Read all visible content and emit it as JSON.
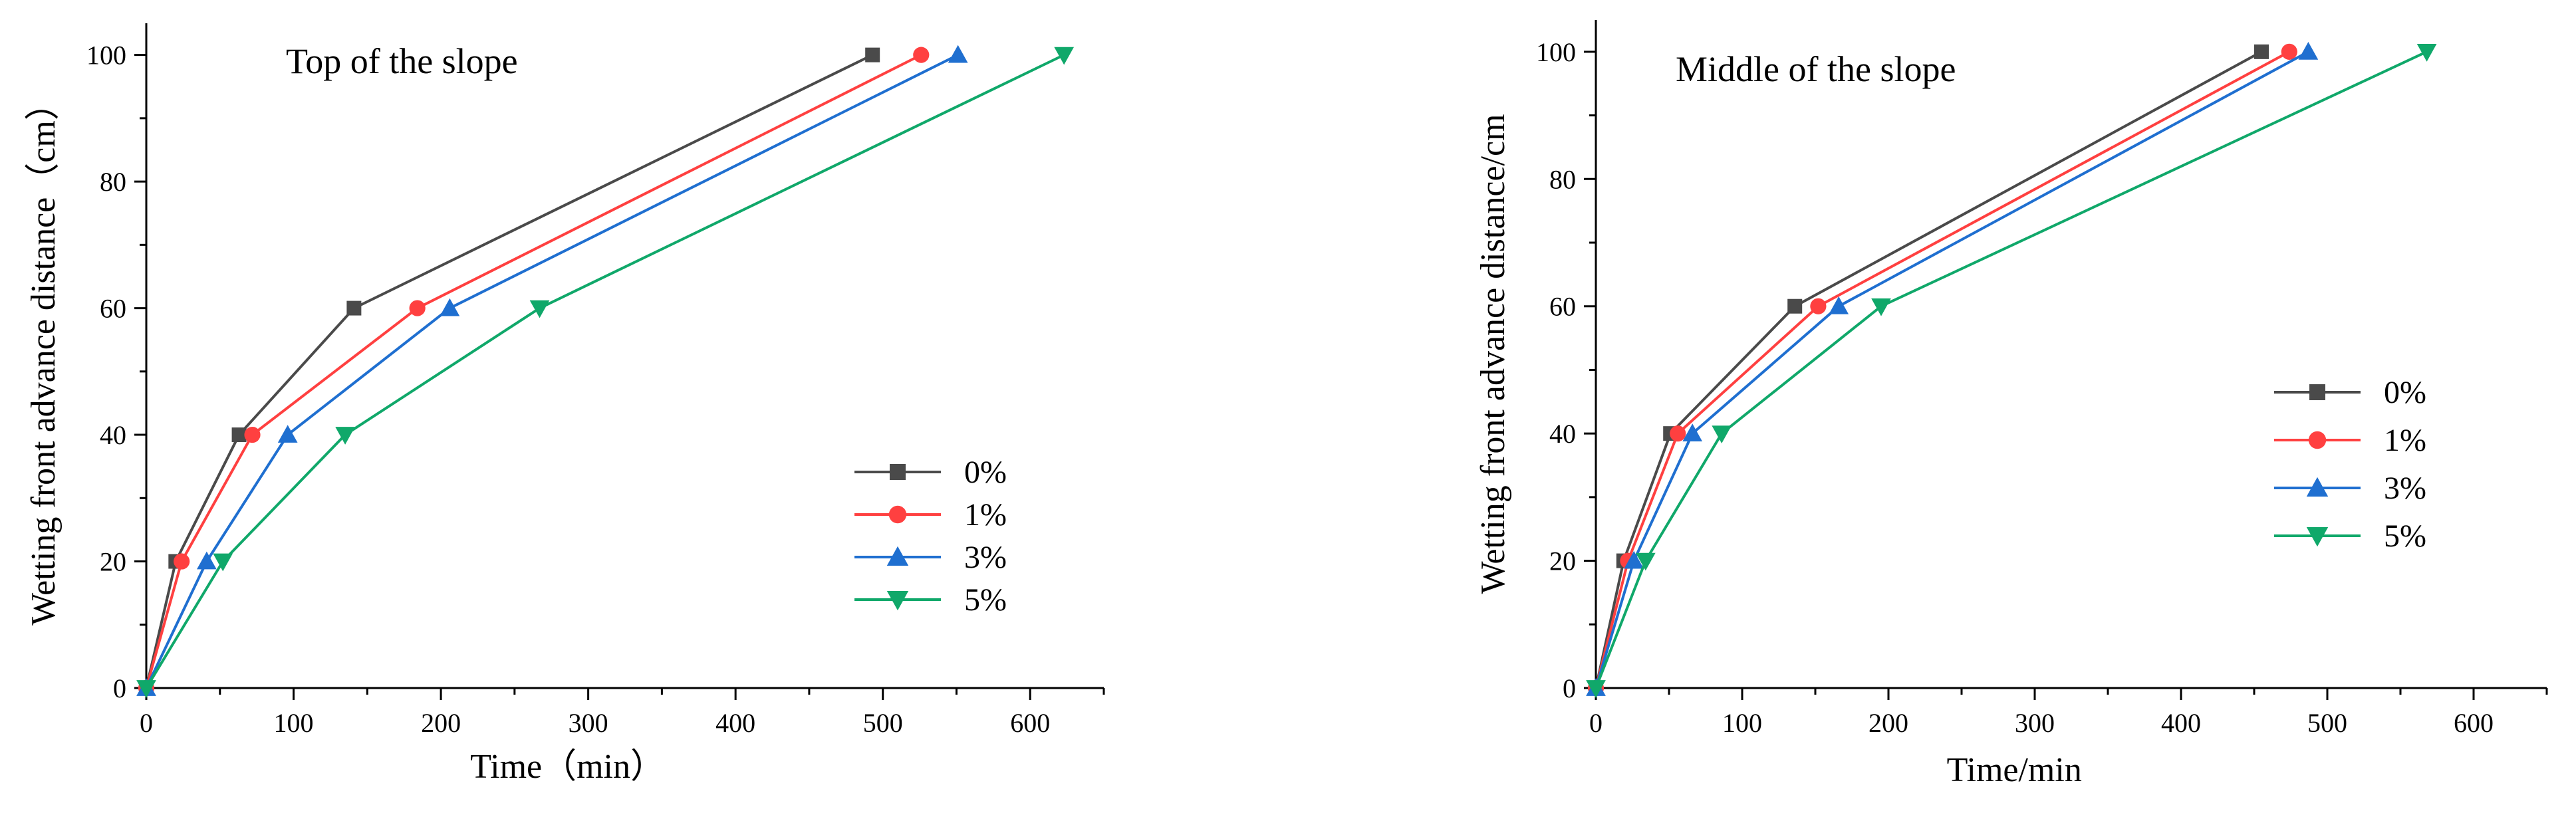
{
  "chart_data": [
    {
      "type": "line",
      "title": "Top of the slope",
      "xlabel": "Time（min）",
      "ylabel": "Wetting front advance distance（cm）",
      "xlim": [
        0,
        650
      ],
      "ylim": [
        0,
        105
      ],
      "xticks": [
        0,
        100,
        200,
        300,
        400,
        500,
        600
      ],
      "yticks": [
        0,
        20,
        40,
        60,
        80,
        100
      ],
      "legend_position": "right-middle",
      "series": [
        {
          "name": "0%",
          "color": "#4a4a4a",
          "marker": "square",
          "x": [
            0,
            20,
            63,
            141,
            493
          ],
          "y": [
            0,
            20,
            40,
            60,
            100
          ]
        },
        {
          "name": "1%",
          "color": "#ff4040",
          "marker": "circle",
          "x": [
            0,
            24,
            72,
            184,
            526
          ],
          "y": [
            0,
            20,
            40,
            60,
            100
          ]
        },
        {
          "name": "3%",
          "color": "#1f6fd0",
          "marker": "triangle-up",
          "x": [
            0,
            41,
            96,
            206,
            551
          ],
          "y": [
            0,
            20,
            40,
            60,
            100
          ]
        },
        {
          "name": "5%",
          "color": "#10a86a",
          "marker": "triangle-down",
          "x": [
            0,
            52,
            135,
            267,
            623
          ],
          "y": [
            0,
            20,
            40,
            60,
            100
          ]
        }
      ]
    },
    {
      "type": "line",
      "title": "Middle of the slope",
      "xlabel": "Time/min",
      "ylabel": "Wetting front advance distance/cm",
      "xlim": [
        0,
        650
      ],
      "ylim": [
        0,
        105
      ],
      "xticks": [
        0,
        100,
        200,
        300,
        400,
        500,
        600
      ],
      "yticks": [
        0,
        20,
        40,
        60,
        80,
        100
      ],
      "legend_position": "right-middle",
      "series": [
        {
          "name": "0%",
          "color": "#4a4a4a",
          "marker": "square",
          "x": [
            0,
            19,
            51,
            136,
            455
          ],
          "y": [
            0,
            20,
            40,
            60,
            100
          ]
        },
        {
          "name": "1%",
          "color": "#ff4040",
          "marker": "circle",
          "x": [
            0,
            22,
            56,
            152,
            474
          ],
          "y": [
            0,
            20,
            40,
            60,
            100
          ]
        },
        {
          "name": "3%",
          "color": "#1f6fd0",
          "marker": "triangle-up",
          "x": [
            0,
            26,
            66,
            166,
            487
          ],
          "y": [
            0,
            20,
            40,
            60,
            100
          ]
        },
        {
          "name": "5%",
          "color": "#10a86a",
          "marker": "triangle-down",
          "x": [
            0,
            34,
            86,
            195,
            568
          ],
          "y": [
            0,
            20,
            40,
            60,
            100
          ]
        }
      ]
    }
  ]
}
